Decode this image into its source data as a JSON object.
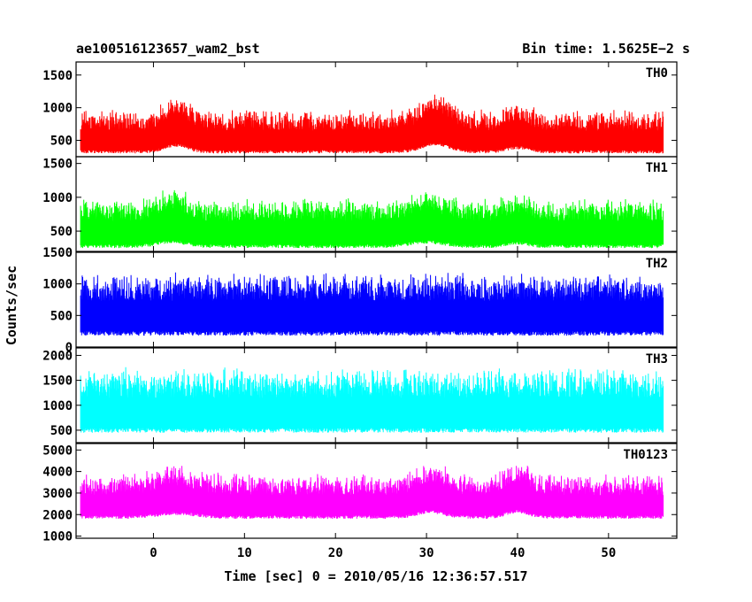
{
  "header": {
    "left_title": "ae100516123657_wam2_bst",
    "right_title": "Bin time: 1.5625E−2 s"
  },
  "chart_data": {
    "type": "line",
    "xlabel": "Time [sec] 0 = 2010/05/16 12:36:57.517",
    "ylabel": "Counts/sec",
    "xlim": [
      -8.5,
      57.5
    ],
    "data_x_range": [
      -8,
      56
    ],
    "x_ticks": [
      0,
      10,
      20,
      30,
      40,
      50
    ],
    "grid": false,
    "legend": "none",
    "panels": [
      {
        "name": "TH0",
        "color": "#ff0000",
        "ylim": [
          250,
          1700
        ],
        "y_ticks": [
          500,
          1000,
          1500
        ],
        "baseline": 650,
        "noise_amp": 330,
        "floor": 300,
        "features": [
          {
            "center": 2.5,
            "width": 1.2,
            "amp": 260
          },
          {
            "center": 31,
            "width": 1.5,
            "amp": 300
          },
          {
            "center": 40,
            "width": 1.2,
            "amp": 160
          }
        ]
      },
      {
        "name": "TH1",
        "color": "#00ff00",
        "ylim": [
          200,
          1600
        ],
        "y_ticks": [
          500,
          1000,
          1500
        ],
        "baseline": 650,
        "noise_amp": 340,
        "floor": 250,
        "features": [
          {
            "center": 2,
            "width": 1.5,
            "amp": 180
          },
          {
            "center": 30,
            "width": 1.8,
            "amp": 160
          },
          {
            "center": 40,
            "width": 1.2,
            "amp": 120
          }
        ]
      },
      {
        "name": "TH2",
        "color": "#0000ff",
        "ylim": [
          0,
          1500
        ],
        "y_ticks": [
          0,
          500,
          1000,
          1500
        ],
        "baseline": 730,
        "noise_amp": 470,
        "floor": 180,
        "features": []
      },
      {
        "name": "TH3",
        "color": "#00ffff",
        "ylim": [
          250,
          2150
        ],
        "y_ticks": [
          500,
          1000,
          1500,
          2000
        ],
        "baseline": 1150,
        "noise_amp": 620,
        "floor": 450,
        "features": []
      },
      {
        "name": "TH0123",
        "color": "#ff00ff",
        "ylim": [
          900,
          5300
        ],
        "y_ticks": [
          1000,
          2000,
          3000,
          4000,
          5000
        ],
        "baseline": 2900,
        "noise_amp": 1050,
        "floor": 1800,
        "features": [
          {
            "center": 2.5,
            "width": 2,
            "amp": 450
          },
          {
            "center": 30.5,
            "width": 1.5,
            "amp": 600
          },
          {
            "center": 40,
            "width": 1.2,
            "amp": 650
          }
        ]
      }
    ]
  }
}
